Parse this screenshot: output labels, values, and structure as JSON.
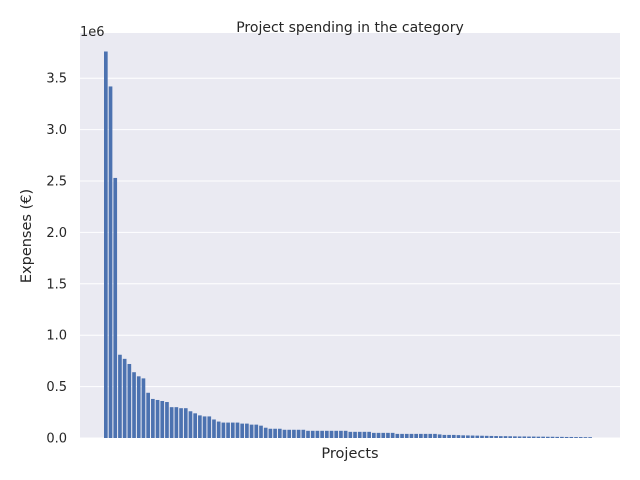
{
  "chart_data": {
    "type": "bar",
    "title": "Project spending in the category",
    "xlabel": "Projects",
    "ylabel": "Expenses (€)",
    "y_scale_label": "1e6",
    "ylim": [
      0,
      3.94
    ],
    "yticks": [
      0.0,
      0.5,
      1.0,
      1.5,
      2.0,
      2.5,
      3.0,
      3.5
    ],
    "ytick_labels": [
      "0.0",
      "0.5",
      "1.0",
      "1.5",
      "2.0",
      "2.5",
      "3.0",
      "3.5"
    ],
    "grid": true,
    "bar_color": "#4c72b0",
    "values": [
      3.76,
      3.42,
      2.53,
      0.81,
      0.77,
      0.72,
      0.64,
      0.6,
      0.58,
      0.44,
      0.38,
      0.37,
      0.36,
      0.35,
      0.3,
      0.3,
      0.29,
      0.29,
      0.26,
      0.24,
      0.22,
      0.21,
      0.21,
      0.18,
      0.16,
      0.15,
      0.15,
      0.15,
      0.15,
      0.14,
      0.14,
      0.13,
      0.13,
      0.12,
      0.1,
      0.09,
      0.09,
      0.09,
      0.08,
      0.08,
      0.08,
      0.08,
      0.08,
      0.07,
      0.07,
      0.07,
      0.07,
      0.07,
      0.07,
      0.07,
      0.07,
      0.07,
      0.06,
      0.06,
      0.06,
      0.06,
      0.06,
      0.05,
      0.05,
      0.05,
      0.05,
      0.05,
      0.04,
      0.04,
      0.04,
      0.04,
      0.04,
      0.04,
      0.04,
      0.04,
      0.04,
      0.035,
      0.03,
      0.03,
      0.03,
      0.028,
      0.026,
      0.025,
      0.024,
      0.023,
      0.022,
      0.021,
      0.02,
      0.019,
      0.018,
      0.018,
      0.017,
      0.016,
      0.015,
      0.015,
      0.014,
      0.014,
      0.013,
      0.013,
      0.012,
      0.012,
      0.011,
      0.011,
      0.01,
      0.01,
      0.009,
      0.009,
      0.008,
      0.008
    ]
  }
}
